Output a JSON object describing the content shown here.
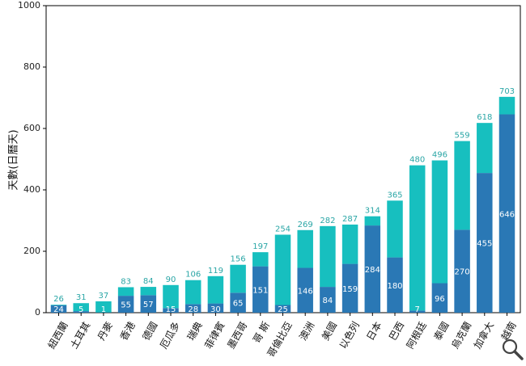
{
  "chart_data": {
    "type": "bar",
    "stacked": true,
    "title": "",
    "xlabel": "",
    "ylabel": "天數(日曆天)",
    "ylim": [
      0,
      1000
    ],
    "yticks": [
      0,
      200,
      400,
      600,
      800,
      1000
    ],
    "grid": false,
    "legend": "none",
    "categories": [
      "紐西蘭",
      "土耳其",
      "丹麥",
      "香港",
      "德國",
      "厄瓜多",
      "瑞典",
      "菲律賓",
      "墨西哥",
      "哥 斯",
      "哥倫比亞",
      "澳洲",
      "美國",
      "以色列",
      "日本",
      "巴西",
      "阿根廷",
      "泰國",
      "烏克蘭",
      "加拿大",
      "越南"
    ],
    "series": [
      {
        "values": [
          24,
          5,
          1,
          55,
          57,
          15,
          28,
          30,
          65,
          151,
          25,
          146,
          84,
          159,
          284,
          180,
          7,
          96,
          270,
          455,
          646
        ]
      },
      {
        "values": [
          2,
          26,
          36,
          28,
          27,
          75,
          78,
          89,
          91,
          46,
          229,
          123,
          198,
          128,
          30,
          185,
          473,
          400,
          289,
          163,
          57
        ]
      }
    ],
    "totals": [
      26,
      31,
      37,
      83,
      84,
      90,
      106,
      119,
      156,
      197,
      254,
      269,
      282,
      287,
      314,
      365,
      480,
      496,
      559,
      618,
      703
    ],
    "colors": {
      "bottom": "#2a78b5",
      "top": "#17bfbf",
      "total_label": "#2aa6a6",
      "inner_label": "#ffffff"
    }
  },
  "toolbar": {
    "zoom_icon": "magnifier-icon"
  }
}
